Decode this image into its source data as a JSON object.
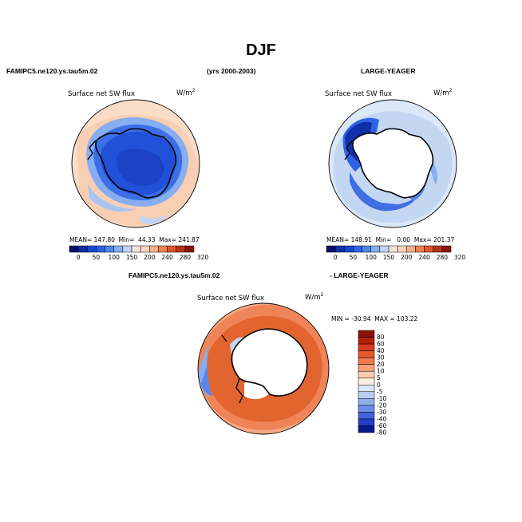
{
  "page": {
    "title": "DJF"
  },
  "panels": [
    {
      "case_name": "FAMIPC5.ne120.ys.tau5m.02",
      "years": "(yrs 2000-2003)",
      "variable": "Surface net SW flux",
      "units_base": "W/m",
      "units_exp": "2",
      "stats": "MEAN= 147.80  Min=  44.33  Max= 241.87",
      "colorbar_labels": [
        "0",
        "50",
        "100",
        "150",
        "200",
        "240",
        "280",
        "320"
      ]
    },
    {
      "case_name": "LARGE-YEAGER",
      "variable": "Surface net SW flux",
      "units_base": "W/m",
      "units_exp": "2",
      "stats": "MEAN= 148.91  Min=   0.00  Max= 201.37",
      "colorbar_labels": [
        "0",
        "50",
        "100",
        "150",
        "200",
        "240",
        "280",
        "320"
      ]
    },
    {
      "case_name": "FAMIPC5.ne120.ys.tau5m.02",
      "case_name_2": "- LARGE-YEAGER",
      "variable": "Surface net SW flux",
      "units_base": "W/m",
      "units_exp": "2",
      "minmax": "MIN = -30.94  MAX = 103.22",
      "colorbar_labels": [
        "80",
        "60",
        "40",
        "30",
        "20",
        "10",
        "5",
        "0",
        "-5",
        "-10",
        "-20",
        "-30",
        "-40",
        "-60",
        "-80"
      ]
    }
  ],
  "colors": {
    "abs_scale": [
      "#08106e",
      "#0d2fa8",
      "#1a46d0",
      "#2f63e6",
      "#4f86ec",
      "#86aef0",
      "#c0d6f5",
      "#f3e5dc",
      "#fbd4b9",
      "#f6b08a",
      "#ef8256",
      "#dc5630",
      "#b83218",
      "#8b1208"
    ],
    "diff_scale": [
      "#8b1208",
      "#b5200e",
      "#d63a1c",
      "#e8582c",
      "#f07a4e",
      "#f6a27a",
      "#fbcbb0",
      "#fdece2",
      "#dbe6f6",
      "#b8cdf1",
      "#8eaeeb",
      "#6a8fe5",
      "#3f64d9",
      "#1f3ec3",
      "#0a1a8a"
    ]
  }
}
